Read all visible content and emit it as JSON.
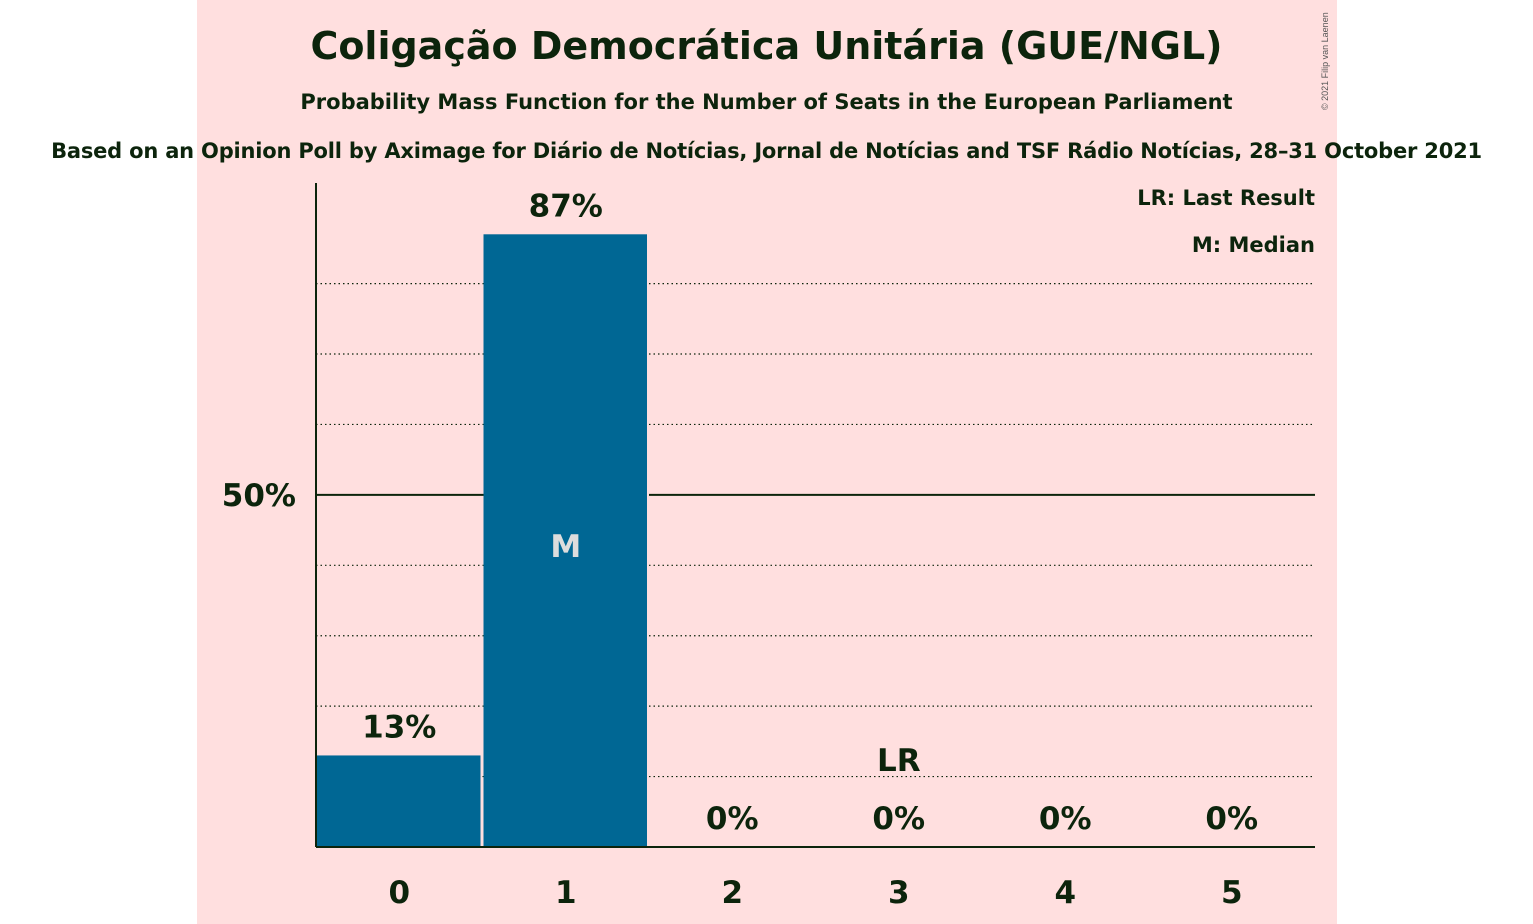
{
  "colors": {
    "panel_background": "#ffdfdf",
    "bar": "#006794",
    "text": "#0c240c",
    "median_label": "#dddddd"
  },
  "title": "Coligação Democrática Unitária (GUE/NGL)",
  "subtitle": "Probability Mass Function for the Number of Seats in the European Parliament",
  "source": "Based on an Opinion Poll by Aximage for Diário de Notícias, Jornal de Notícias and TSF Rádio Notícias, 28–31 October 2021",
  "copyright": "© 2021 Filip van Laenen",
  "legend": {
    "last_result": "LR: Last Result",
    "median": "M: Median"
  },
  "chart_data": {
    "type": "bar",
    "categories": [
      "0",
      "1",
      "2",
      "3",
      "4",
      "5"
    ],
    "values": [
      13,
      87,
      0,
      0,
      0,
      0
    ],
    "value_labels": [
      "13%",
      "87%",
      "0%",
      "0%",
      "0%",
      "0%"
    ],
    "ylim": [
      0,
      94
    ],
    "y_gridlines": [
      10,
      20,
      30,
      40,
      50,
      60,
      70,
      80
    ],
    "y_tick_label": "50%",
    "y_tick_value": 50,
    "median_category": "1",
    "median_marker": "M",
    "last_result_category": "3",
    "last_result_marker": "LR",
    "xlabel": "",
    "ylabel": ""
  }
}
